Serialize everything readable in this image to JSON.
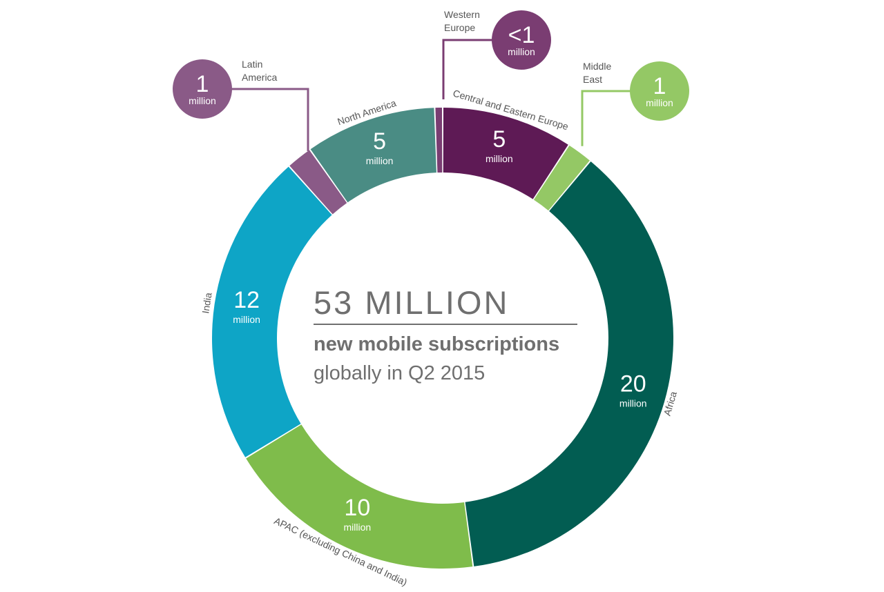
{
  "chart_data": {
    "type": "pie",
    "headline": "53 MILLION",
    "subtitle_line1": "new mobile subscriptions",
    "subtitle_line2": "globally in Q2 2015",
    "unit": "million",
    "segments": [
      {
        "id": "central-eastern-europe",
        "name": "Central and Eastern Europe",
        "value": 5,
        "display": "5",
        "color": "#5e1a55"
      },
      {
        "id": "middle-east",
        "name": "Middle East",
        "label_lines": [
          "Middle",
          "East"
        ],
        "value": 1,
        "display": "1",
        "color": "#94c865"
      },
      {
        "id": "africa",
        "name": "Africa",
        "value": 20,
        "display": "20",
        "color": "#025d52"
      },
      {
        "id": "apac",
        "name": "APAC (excluding China and India)",
        "value": 10,
        "display": "10",
        "color": "#7fbc4b"
      },
      {
        "id": "india",
        "name": "India",
        "value": 12,
        "display": "12",
        "color": "#0ea5c6"
      },
      {
        "id": "latin-america",
        "name": "Latin America",
        "label_lines": [
          "Latin",
          "America"
        ],
        "value": 1,
        "display": "1",
        "color": "#8a5a87"
      },
      {
        "id": "north-america",
        "name": "North America",
        "value": 5,
        "display": "5",
        "color": "#4a8c84"
      },
      {
        "id": "western-europe",
        "name": "Western Europe",
        "label_lines": [
          "Western",
          "Europe"
        ],
        "value": 0.3,
        "display": "<1",
        "color": "#7a3d72"
      }
    ]
  }
}
